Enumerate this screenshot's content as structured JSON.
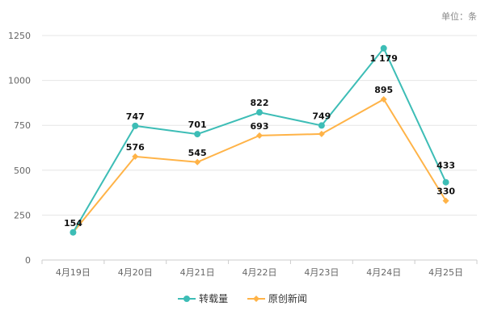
{
  "unit_label": "单位：条",
  "colors": {
    "series_a": "#3dbdb6",
    "series_b": "#ffb347",
    "grid": "#e6e6e6",
    "axis": "#cccccc"
  },
  "chart_data": {
    "type": "line",
    "categories": [
      "4月19日",
      "4月20日",
      "4月21日",
      "4月22日",
      "4月23日",
      "4月24日",
      "4月25日"
    ],
    "ylim": [
      0,
      1250
    ],
    "yticks": [
      0,
      250,
      500,
      750,
      1000,
      1250
    ],
    "grid": true,
    "legend_position": "bottom",
    "series": [
      {
        "name": "转载量",
        "values": [
          154,
          747,
          701,
          822,
          749,
          1179,
          433
        ],
        "labels": [
          "154",
          "747",
          "701",
          "822",
          "749",
          "1 179",
          "433"
        ],
        "marker": "circle"
      },
      {
        "name": "原创新闻",
        "values": [
          154,
          576,
          545,
          693,
          702,
          895,
          330
        ],
        "labels": [
          "",
          "576",
          "545",
          "693",
          "",
          "895",
          "330"
        ],
        "marker": "diamond"
      }
    ]
  }
}
